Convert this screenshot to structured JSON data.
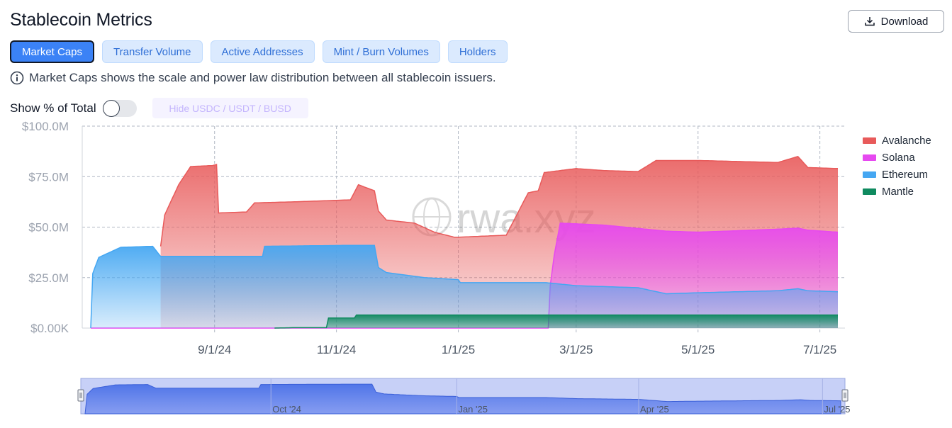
{
  "header": {
    "title": "Stablecoin Metrics",
    "download_label": "Download"
  },
  "tabs": [
    {
      "label": "Market Caps",
      "active": true
    },
    {
      "label": "Transfer Volume",
      "active": false
    },
    {
      "label": "Active Addresses",
      "active": false
    },
    {
      "label": "Mint / Burn Volumes",
      "active": false
    },
    {
      "label": "Holders",
      "active": false
    }
  ],
  "info_text": "Market Caps shows the scale and power law distribution between all stablecoin issuers.",
  "toggle": {
    "label": "Show % of Total",
    "on": false
  },
  "hide_button_label": "Hide USDC / USDT / BUSD",
  "watermark": "rwa.xyz",
  "colors": {
    "avalanche": "#e85a5a",
    "solana": "#e649f0",
    "ethereum": "#45a7f2",
    "mantle": "#0f8a5f",
    "accent": "#3b82f6"
  },
  "chart_data": {
    "type": "area",
    "stacked": true,
    "ylim": [
      0,
      100
    ],
    "y_unit": "$M",
    "y_ticks": [
      "$0.00K",
      "$25.0M",
      "$50.0M",
      "$75.0M",
      "$100.0M"
    ],
    "x_ticks": [
      "9/1/24",
      "11/1/24",
      "1/1/25",
      "3/1/25",
      "5/1/25",
      "7/1/25"
    ],
    "x_range": [
      "2024-07-01",
      "2025-07-10"
    ],
    "grid": true,
    "legend_position": "top-right",
    "series": [
      {
        "name": "Mantle",
        "points": [
          [
            "2024-10-01",
            0
          ],
          [
            "2024-10-10",
            0.2
          ],
          [
            "2024-10-27",
            0.2
          ],
          [
            "2024-10-28",
            5
          ],
          [
            "2024-11-10",
            5
          ],
          [
            "2024-11-11",
            6.5
          ],
          [
            "2025-07-10",
            6.5
          ]
        ]
      },
      {
        "name": "Ethereum",
        "points": [
          [
            "2024-07-01",
            0
          ],
          [
            "2024-07-02",
            27
          ],
          [
            "2024-07-05",
            35
          ],
          [
            "2024-07-16",
            40
          ],
          [
            "2024-08-01",
            40.5
          ],
          [
            "2024-08-05",
            35.5
          ],
          [
            "2024-08-20",
            35.5
          ],
          [
            "2024-09-01",
            35.5
          ],
          [
            "2024-09-25",
            35.5
          ],
          [
            "2024-09-26",
            40.5
          ],
          [
            "2024-11-10",
            41
          ],
          [
            "2024-11-20",
            41
          ],
          [
            "2024-11-22",
            30
          ],
          [
            "2024-11-26",
            27.5
          ],
          [
            "2024-12-15",
            25
          ],
          [
            "2025-01-01",
            24
          ],
          [
            "2025-01-02",
            22.5
          ],
          [
            "2025-02-14",
            22.5
          ],
          [
            "2025-03-01",
            21
          ],
          [
            "2025-04-01",
            20
          ],
          [
            "2025-04-15",
            17
          ],
          [
            "2025-05-01",
            17.5
          ],
          [
            "2025-06-10",
            18.5
          ],
          [
            "2025-06-20",
            19.5
          ],
          [
            "2025-06-25",
            18.5
          ],
          [
            "2025-07-10",
            18
          ]
        ]
      },
      {
        "name": "Solana",
        "points": [
          [
            "2024-07-01",
            0
          ],
          [
            "2025-02-15",
            0
          ],
          [
            "2025-02-16",
            21
          ],
          [
            "2025-02-18",
            36
          ],
          [
            "2025-02-21",
            52
          ],
          [
            "2025-03-15",
            51
          ],
          [
            "2025-04-15",
            48
          ],
          [
            "2025-05-01",
            47.5
          ],
          [
            "2025-05-15",
            48
          ],
          [
            "2025-06-10",
            49
          ],
          [
            "2025-06-20",
            49.5
          ],
          [
            "2025-06-25",
            48.5
          ],
          [
            "2025-07-10",
            47.5
          ]
        ]
      },
      {
        "name": "Avalanche",
        "points": [
          [
            "2024-07-01",
            null
          ],
          [
            "2024-08-05",
            40.5
          ],
          [
            "2024-08-07",
            56
          ],
          [
            "2024-08-14",
            71
          ],
          [
            "2024-08-20",
            80
          ],
          [
            "2024-08-31",
            80.5
          ],
          [
            "2024-09-02",
            81
          ],
          [
            "2024-09-03",
            57
          ],
          [
            "2024-09-17",
            57.5
          ],
          [
            "2024-09-21",
            62
          ],
          [
            "2024-10-10",
            62.5
          ],
          [
            "2024-11-08",
            63.5
          ],
          [
            "2024-11-12",
            71
          ],
          [
            "2024-11-20",
            68
          ],
          [
            "2024-11-22",
            58
          ],
          [
            "2024-11-26",
            53.5
          ],
          [
            "2024-12-10",
            52
          ],
          [
            "2024-12-20",
            47.5
          ],
          [
            "2024-12-30",
            45
          ],
          [
            "2025-01-01",
            45
          ],
          [
            "2025-01-25",
            46
          ],
          [
            "2025-02-05",
            67
          ],
          [
            "2025-02-10",
            68
          ],
          [
            "2025-02-13",
            77
          ],
          [
            "2025-03-01",
            79
          ],
          [
            "2025-03-15",
            78
          ],
          [
            "2025-04-01",
            77.5
          ],
          [
            "2025-04-10",
            83
          ],
          [
            "2025-05-01",
            83
          ],
          [
            "2025-06-10",
            82
          ],
          [
            "2025-06-20",
            85
          ],
          [
            "2025-06-25",
            79.5
          ],
          [
            "2025-07-10",
            79
          ]
        ]
      }
    ],
    "navigator": {
      "x_ticks": [
        "Oct '24",
        "Jan '25",
        "Apr '25",
        "Jul '25"
      ]
    }
  }
}
